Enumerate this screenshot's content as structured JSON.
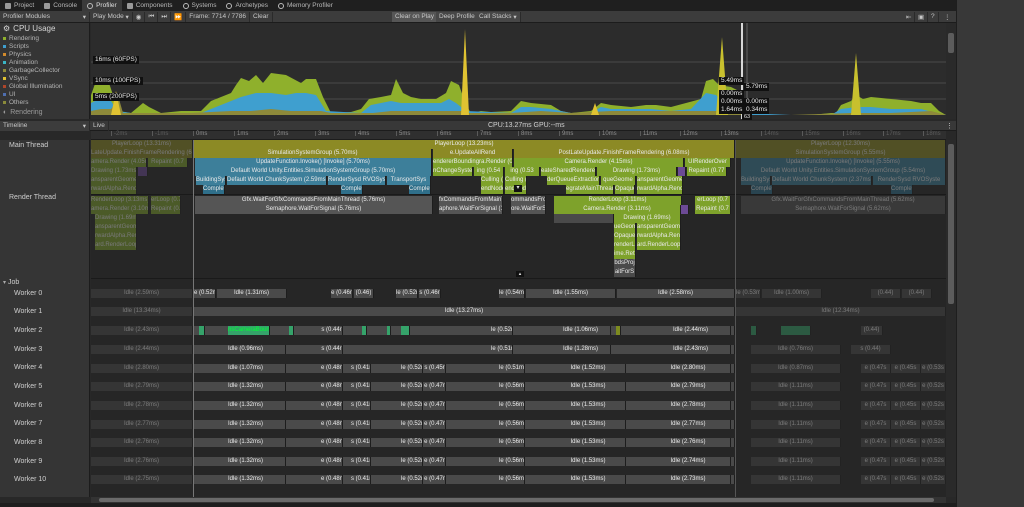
{
  "tabs": [
    {
      "label": "Project",
      "icon": "folder-icon"
    },
    {
      "label": "Console",
      "icon": "console-icon"
    },
    {
      "label": "Profiler",
      "icon": "profiler-icon",
      "active": true
    },
    {
      "label": "Components",
      "icon": "components-icon"
    },
    {
      "label": "Systems",
      "icon": "systems-icon"
    },
    {
      "label": "Archetypes",
      "icon": "archetypes-icon"
    },
    {
      "label": "Memory Profiler",
      "icon": "memory-profiler-icon"
    }
  ],
  "toolbar": {
    "modules_label": "Profiler Modules",
    "play_mode": "Play Mode",
    "frame": "Frame: 7714 / 7786",
    "clear": "Clear",
    "clear_on_play": "Clear on Play",
    "deep_profile": "Deep Profile",
    "call_stacks": "Call Stacks"
  },
  "cpu_module": {
    "title": "CPU Usage",
    "legend": [
      {
        "label": "Rendering",
        "color": "#8fb02c"
      },
      {
        "label": "Scripts",
        "color": "#3f9fcf"
      },
      {
        "label": "Physics",
        "color": "#d18a2c"
      },
      {
        "label": "Animation",
        "color": "#3ab5c4"
      },
      {
        "label": "GarbageCollector",
        "color": "#8e8a3a"
      },
      {
        "label": "VSync",
        "color": "#e0c232"
      },
      {
        "label": "Global Illumination",
        "color": "#b0462a"
      },
      {
        "label": "UI",
        "color": "#4f6fb0"
      },
      {
        "label": "Others",
        "color": "#8a8a3a"
      }
    ],
    "next_module": "Rendering",
    "thresholds": [
      "16ms (60FPS)",
      "10ms (100FPS)",
      "5ms (200FPS)"
    ],
    "selection_labels_left": [
      "5.49ms",
      "0.00ms",
      "0.00ms",
      "1.64ms"
    ],
    "selection_labels_right": [
      "5.79ms",
      "0.00ms",
      "0.34ms"
    ],
    "selection_frame": "63"
  },
  "timeline": {
    "view_label": "Timeline",
    "live_label": "Live",
    "cpu_gpu": "CPU:13.27ms   GPU:--ms",
    "ruler_prev": [
      "-2ms",
      "-1ms"
    ],
    "ruler": [
      "0ms",
      "1ms",
      "2ms",
      "3ms",
      "4ms",
      "5ms",
      "6ms",
      "7ms",
      "8ms",
      "9ms",
      "10ms",
      "11ms",
      "12ms",
      "13ms"
    ],
    "ruler_next": [
      "14ms",
      "15ms",
      "16ms",
      "17ms",
      "18ms"
    ]
  },
  "threads": {
    "main": "Main Thread",
    "render": "Render Thread",
    "job_group": "Job",
    "workers": [
      "Worker 0",
      "Worker 1",
      "Worker 2",
      "Worker 3",
      "Worker 4",
      "Worker 5",
      "Worker 6",
      "Worker 7",
      "Worker 8",
      "Worker 9",
      "Worker 10"
    ]
  },
  "main_thread_blocks": {
    "prev_playerloop": "PlayerLoop (13.31ms)",
    "prev_postlate": "LateUpdate.FinishFrameRendering (6.0",
    "prev_camera": "amera.Render (4.05m",
    "prev_drawing": "Drawing (1.73ms)",
    "prev_repaint": "Repaint (0.7",
    "prev_transparent": "ansparentGeometr",
    "prev_alpha": "rwardAlpha.Render",
    "playerloop": "PlayerLoop (13.23ms)",
    "simgroup": "SimulationSystemGroup (5.70ms)",
    "updatefn": "UpdateFunction.Invoke() [Invoke] (5.70ms)",
    "defaultworld": "Default World Unity.Entities.SimulationSystemGroup (5.70ms)",
    "buildingsys": "BuildingSys",
    "chunksystem": "Default World ChunkSystem (2.59ms)",
    "rendersys": "RenderSysd RVOSyst",
    "transportsys": "TransportSys",
    "compl": "Complet",
    "updateall": "e.UpdateAllRend",
    "postlate": "PostLateUpdate.FinishFrameRendering (6.08ms)",
    "renderer_bounding": "endererBoundingra.Render (0.",
    "camera_render": "Camera.Render (4.15ms)",
    "uirender": "UIRenderOver",
    "changesys": "nChangeSystem",
    "ing1": "ing (0.54",
    "ing2": "ing (0.53",
    "prepare": "eateSharedRenderer",
    "drawing": "Drawing (1.73ms)",
    "repaint": "Repaint (0.77",
    "culling1": "Culling (0.",
    "culling2": "Culling (0",
    "queue": "derQueueExtraction",
    "opaque": "queGeome",
    "transparent": "ansparentGeometr",
    "integrate": "egrateMainThread",
    "opaque2": "Opaque.F",
    "alpha": "rwardAlpha.Render",
    "endnode1": "endNode",
    "endnode2": "endNode",
    "next_playerloop": "PlayerLoop (12.30ms)",
    "next_sim": "SimulationSystemGroup (5.55ms)",
    "next_update": "UpdateFunction.Invoke() [Invoke] (5.55ms)",
    "next_default": "Default World Unity.Entities.SimulationSystemGroup (5.54ms)",
    "next_building": "BuildingSys",
    "next_chunk": "Default World ChunkSystem (2.37ms)",
    "next_render": "RenderSysd RVOSyste",
    "next_compl1": "Complet",
    "next_compl2": "Complet"
  },
  "render_thread_blocks": {
    "prev_renderloop": "RenderLoop (3.13ms)",
    "prev_camera": "amera.Render (3.10m",
    "prev_drawing": "Drawing (1.69ms)",
    "prev_transparent": "ansparentGeometr",
    "prev_alpha": "rwardAlpha.Render",
    "prev_loop": "ard.RenderLoopJ",
    "prev_erloop": "erLoop (0.7",
    "prev_repaint": "Repaint (0.6",
    "wait_gfx": "Gfx.WaitForGfxCommandsFromMainThread (5.76ms)",
    "semaphore": "Semaphore.WaitForSignal (5.76ms)",
    "wait_gfx2": "fxCommandsFromMainThr",
    "semaphore2": "aphore.WaitForSignal (1.5",
    "wait_gfx3": "ommandsFromMai",
    "semaphore3": "ore.WaitForSignal",
    "renderloop": "RenderLoop (3.11ms)",
    "camera": "Camera.Render (3.11ms)",
    "drawing": "Drawing (1.69ms)",
    "opaque": "ueGeome",
    "transparent": "ansparentGeometr",
    "opaque2": "Opaque.F",
    "alpha": "rwardAlpha.Rende",
    "render1": "renderLi",
    "loop": "ard.RenderLoopJ",
    "ime": "ime.Rett",
    "bd": "bdsProj",
    "ait": "aitForS",
    "erloop": "erLoop (0.7",
    "repaint": "Repaint (0.7",
    "next_wait": "Gfx.WaitForGfxCommandsFromMainThread (5.62ms)",
    "next_sema": "Semaphore.WaitForSignal (5.62ms)"
  },
  "workers": [
    {
      "prev": "Idle (2.59ms)",
      "blocks": [
        "e (0.52m",
        "Idle (1.31ms)",
        "e (0.46r",
        "(0.46)",
        "le (0.52m",
        "s (0.46r",
        "le (0.54m",
        "Idle (1.55ms)",
        "Idle (2.58ms)"
      ],
      "next": [
        "le (0.53m",
        "Idle (1.00ms)",
        "(0.44)",
        "(0.44)"
      ]
    },
    {
      "prev": "Idle (13.34ms)",
      "blocks": [
        "Idle (13.27ms)"
      ],
      "next": [
        "Idle (12.34ms)"
      ]
    },
    {
      "prev": "Idle (2.43ms)",
      "blocks": [
        "nsCameraBoun",
        "s (0.44r",
        "le (0.52m",
        "Idle (1.06ms)",
        "Idle (2.44ms)"
      ],
      "next": [
        "(0.44)"
      ]
    },
    {
      "prev": "Idle (2.44ms)",
      "blocks": [
        "Idle (0.96ms)",
        "s (0.44r",
        "le (0.51m",
        "Idle (1.28ms)",
        "Idle (2.43ms)"
      ],
      "next": [
        "Idle (0.76ms)",
        "s (0.44)"
      ]
    },
    {
      "prev": "Idle (2.80ms)",
      "blocks": [
        "Idle (1.07ms)",
        "e (0.48n",
        "s (0.41r",
        "le (0.52m",
        "s (0.45r",
        "le (0.51m",
        "Idle (1.52ms)",
        "Idle (2.80ms)"
      ],
      "next": [
        "Idle (0.87ms)",
        "e (0.47s",
        "e (0.45s",
        "e (0.53s"
      ]
    },
    {
      "prev": "Idle (2.79ms)",
      "blocks": [
        "Idle (1.32ms)",
        "e (0.48n",
        "s (0.41r",
        "le (0.52m",
        "e (0.47r",
        "le (0.56m",
        "Idle (1.53ms)",
        "Idle (2.79ms)"
      ],
      "next": [
        "Idle (1.11ms)",
        "e (0.47s",
        "e (0.45s",
        "e (0.52s"
      ]
    },
    {
      "prev": "Idle (2.78ms)",
      "blocks": [
        "Idle (1.32ms)",
        "e (0.48n",
        "s (0.41r",
        "le (0.52m",
        "e (0.47r",
        "le (0.56m",
        "Idle (1.53ms)",
        "Idle (2.78ms)"
      ],
      "next": [
        "Idle (1.11ms)",
        "e (0.47s",
        "e (0.45s",
        "e (0.52s"
      ]
    },
    {
      "prev": "Idle (2.77ms)",
      "blocks": [
        "Idle (1.32ms)",
        "e (0.48n",
        "s (0.41r",
        "le (0.52m",
        "e (0.47r",
        "le (0.56m",
        "Idle (1.53ms)",
        "Idle (2.77ms)"
      ],
      "next": [
        "Idle (1.11ms)",
        "e (0.47s",
        "e (0.45s",
        "e (0.52s"
      ]
    },
    {
      "prev": "Idle (2.76ms)",
      "blocks": [
        "Idle (1.32ms)",
        "e (0.48n",
        "s (0.41r",
        "le (0.52m",
        "e (0.47r",
        "le (0.56m",
        "Idle (1.53ms)",
        "Idle (2.76ms)"
      ],
      "next": [
        "Idle (1.11ms)",
        "e (0.47s",
        "e (0.45s",
        "e (0.52s"
      ]
    },
    {
      "prev": "Idle (2.76ms)",
      "blocks": [
        "Idle (1.32ms)",
        "e (0.48n",
        "s (0.41r",
        "le (0.52m",
        "e (0.47r",
        "le (0.56m",
        "Idle (1.53ms)",
        "Idle (2.74ms)"
      ],
      "next": [
        "Idle (1.11ms)",
        "e (0.47s",
        "e (0.45s",
        "e (0.52s"
      ]
    },
    {
      "prev": "Idle (2.75ms)",
      "blocks": [
        "Idle (1.32ms)",
        "e (0.48n",
        "s (0.41r",
        "le (0.52m",
        "e (0.47r",
        "le (0.56m",
        "Idle (1.53ms)",
        "Idle (2.73ms)"
      ],
      "next": [
        "Idle (1.11ms)",
        "e (0.47s",
        "e (0.45s",
        "e (0.52s"
      ]
    }
  ]
}
